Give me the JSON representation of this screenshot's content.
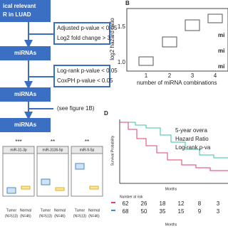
{
  "flow": {
    "top_box": [
      "ical relevant",
      "R in LUAD"
    ],
    "step1": [
      "Adjusted p-value < 0.05",
      "Log2 fold change > 3"
    ],
    "box2": "miRNAs",
    "step2": [
      "Log-rank p-value < 0.05",
      "CoxPH p-value < 0.05"
    ],
    "box3": "miRNAs",
    "step3": "(see figure 1B)",
    "box4": "miRNAs"
  },
  "boxplots": {
    "panels": [
      {
        "name": "miR-31-3p",
        "stars": "***"
      },
      {
        "name": "miR-3136-5p",
        "stars": "**"
      },
      {
        "name": "miR-9-5p",
        "stars": "**"
      }
    ],
    "groups": [
      "Tumor",
      "Normal"
    ],
    "counts": [
      "(N=513)",
      "(N=46)"
    ]
  },
  "panel_b": {
    "label": "B",
    "ylabel": "log2 hazard ratio",
    "xlabel": "number of miRNA combinations",
    "yticks": [
      "1.5",
      "1.0"
    ],
    "xticks": [
      "1",
      "2",
      "3",
      "4"
    ],
    "side": [
      "mi",
      "mi",
      "mi"
    ]
  },
  "panel_d": {
    "label": "D",
    "ylabel": "Survival Probability",
    "xlabel": "Months",
    "notes": [
      "5-year overa",
      "Hazard Ratio",
      "Log-rank p-va"
    ],
    "risk_title": "Number at risk",
    "risk_red": [
      "62",
      "26",
      "18",
      "12",
      "8",
      "3"
    ],
    "risk_blue": [
      "68",
      "50",
      "35",
      "15",
      "9",
      "3"
    ],
    "risk_xlabel": "Months"
  }
}
